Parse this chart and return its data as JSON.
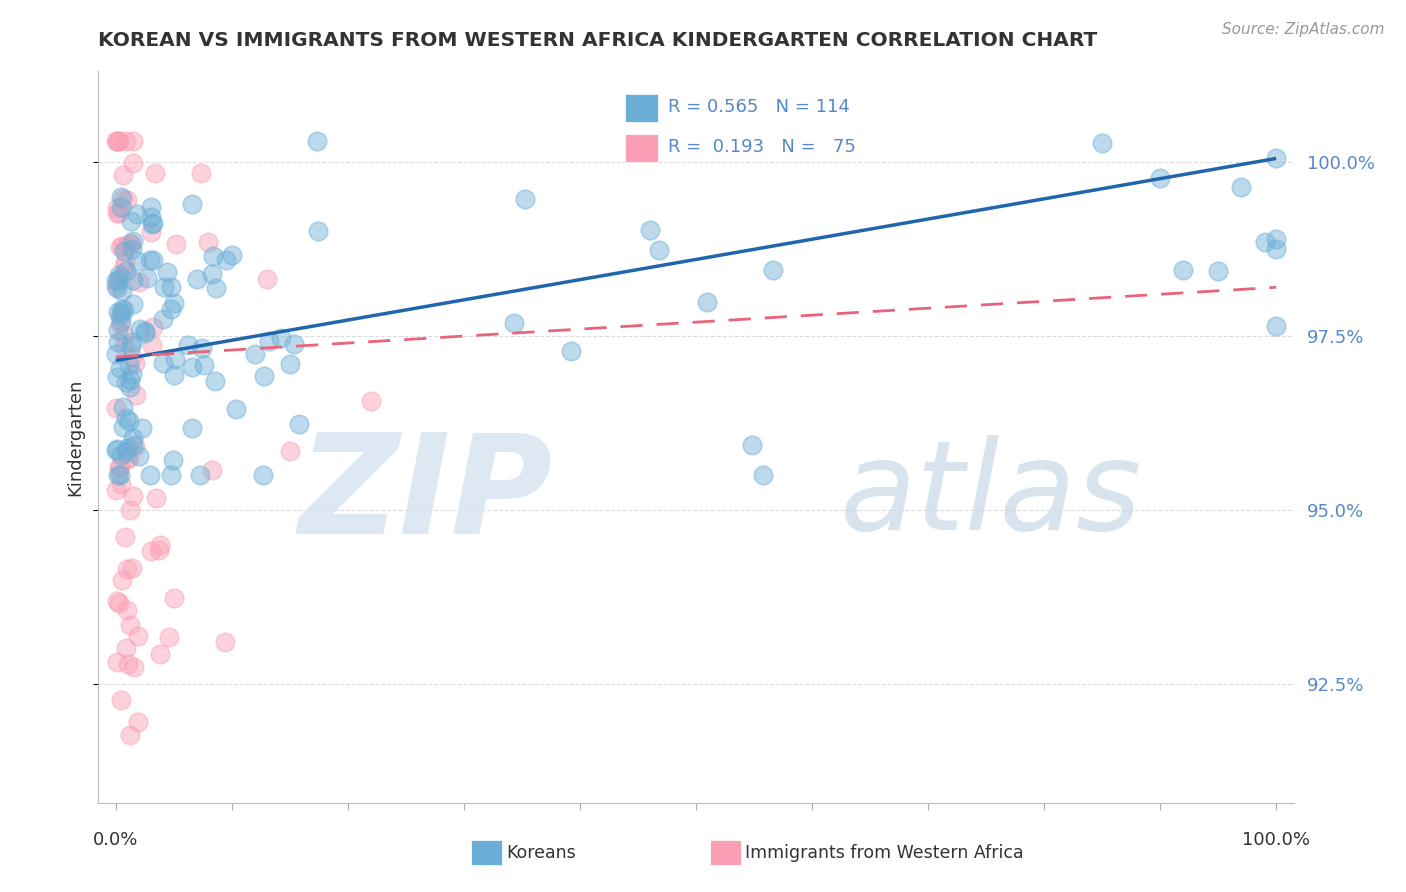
{
  "title": "KOREAN VS IMMIGRANTS FROM WESTERN AFRICA KINDERGARTEN CORRELATION CHART",
  "source": "Source: ZipAtlas.com",
  "ylabel": "Kindergarten",
  "korean_color": "#6baed6",
  "korean_edge": "#6baed6",
  "western_africa_color": "#fa9fb5",
  "western_africa_edge": "#fa9fb5",
  "korean_R": 0.565,
  "korean_N": 114,
  "wa_R": 0.193,
  "wa_N": 75,
  "watermark_zip": "ZIP",
  "watermark_atlas": "atlas",
  "ylim_min": 0.908,
  "ylim_max": 1.013,
  "xlim_min": -0.015,
  "xlim_max": 1.015,
  "yticks": [
    0.925,
    0.95,
    0.975,
    1.0
  ],
  "ytick_labels": [
    "92.5%",
    "95.0%",
    "97.5%",
    "100.0%"
  ],
  "background_color": "#ffffff",
  "grid_color": "#cccccc",
  "trend_blue": "#2166ac",
  "trend_pink": "#e8647a",
  "label_color": "#5588cc",
  "text_color": "#333333",
  "source_color": "#999999",
  "legend_bg": "#f0f4ff",
  "marker_size": 180,
  "marker_alpha": 0.45,
  "korean_trend_start_y": 0.9715,
  "korean_trend_end_y": 1.0005,
  "wa_trend_start_y": 0.972,
  "wa_trend_end_y": 0.982
}
